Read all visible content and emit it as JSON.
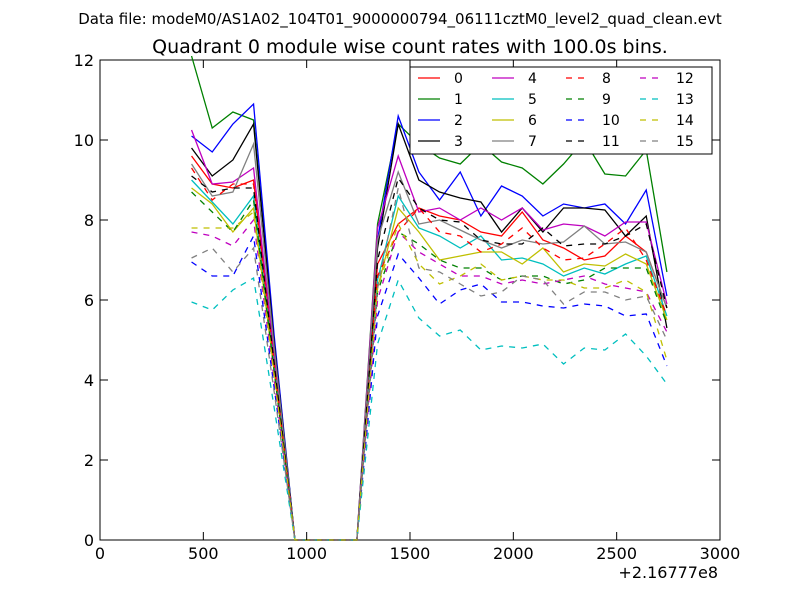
{
  "suptitle": "Data file: modeM0/AS1A02_104T01_9000000794_06111cztM0_level2_quad_clean.evt",
  "chart_data": {
    "type": "line",
    "title": "Quadrant 0 module wise count rates with 100.0s bins.",
    "xlabel": "",
    "ylabel": "",
    "x_offset_label": "+2.16777e8",
    "xlim": [
      0,
      3000
    ],
    "ylim": [
      0,
      12
    ],
    "xticks": [
      0,
      500,
      1000,
      1500,
      2000,
      2500,
      3000
    ],
    "xtick_labels": [
      "0",
      "500",
      "1000",
      "1500",
      "2000",
      "2500",
      "3000"
    ],
    "yticks": [
      0,
      2,
      4,
      6,
      8,
      10,
      12
    ],
    "ytick_labels": [
      "0",
      "2",
      "4",
      "6",
      "8",
      "10",
      "12"
    ],
    "grid": false,
    "legend_position": "top-right",
    "x": [
      443,
      543,
      643,
      743,
      843,
      943,
      1043,
      1143,
      1243,
      1343,
      1443,
      1543,
      1643,
      1743,
      1843,
      1943,
      2043,
      2143,
      2243,
      2343,
      2443,
      2543,
      2643,
      2743
    ],
    "series": [
      {
        "name": "0",
        "color": "#ff0000",
        "dash": false,
        "values": [
          9.6,
          8.9,
          8.8,
          9.0,
          4.5,
          0,
          0,
          0,
          0,
          6.9,
          7.9,
          8.3,
          8.1,
          8.0,
          7.7,
          7.6,
          8.2,
          7.5,
          7.3,
          7.0,
          7.1,
          7.6,
          7.2,
          5.8
        ]
      },
      {
        "name": "1",
        "color": "#008000",
        "dash": false,
        "values": [
          12.1,
          10.3,
          10.7,
          10.5,
          5.0,
          0,
          0,
          0,
          0,
          7.9,
          10.4,
          9.9,
          9.55,
          9.4,
          9.9,
          9.45,
          9.3,
          8.9,
          9.4,
          10.0,
          9.15,
          9.1,
          9.75,
          6.7
        ]
      },
      {
        "name": "2",
        "color": "#0000ff",
        "dash": false,
        "values": [
          10.1,
          9.7,
          10.4,
          10.9,
          5.1,
          0,
          0,
          0,
          0,
          7.5,
          10.6,
          9.2,
          8.5,
          9.2,
          8.1,
          8.85,
          8.6,
          8.1,
          8.4,
          8.3,
          8.4,
          7.9,
          8.75,
          6.1
        ]
      },
      {
        "name": "3",
        "color": "#000000",
        "dash": false,
        "values": [
          9.8,
          9.1,
          9.5,
          10.4,
          4.9,
          0,
          0,
          0,
          0,
          7.3,
          10.4,
          9.0,
          8.7,
          8.55,
          8.45,
          7.7,
          8.3,
          7.7,
          8.3,
          8.3,
          8.25,
          7.6,
          8.1,
          5.3
        ]
      },
      {
        "name": "4",
        "color": "#bf00bf",
        "dash": false,
        "values": [
          10.25,
          8.9,
          8.95,
          9.3,
          4.6,
          0,
          0,
          0,
          0,
          7.8,
          9.6,
          8.2,
          8.3,
          8.0,
          8.3,
          8.0,
          8.3,
          7.75,
          7.9,
          7.85,
          7.6,
          7.95,
          7.95,
          5.9
        ]
      },
      {
        "name": "5",
        "color": "#00bfbf",
        "dash": false,
        "values": [
          9.0,
          8.45,
          7.9,
          8.6,
          4.3,
          0,
          0,
          0,
          0,
          6.5,
          8.6,
          7.8,
          7.6,
          7.3,
          7.6,
          7.0,
          7.05,
          6.9,
          6.6,
          6.8,
          6.65,
          6.9,
          7.1,
          5.6
        ]
      },
      {
        "name": "6",
        "color": "#bfbf00",
        "dash": false,
        "values": [
          8.8,
          8.4,
          7.7,
          8.3,
          4.2,
          0,
          0,
          0,
          0,
          6.3,
          8.3,
          7.7,
          7.0,
          7.1,
          7.2,
          7.2,
          6.9,
          7.3,
          6.7,
          6.9,
          6.85,
          7.15,
          6.9,
          5.5
        ]
      },
      {
        "name": "7",
        "color": "#808080",
        "dash": false,
        "values": [
          9.4,
          8.6,
          8.7,
          9.9,
          4.8,
          0,
          0,
          0,
          0,
          7.5,
          9.2,
          7.9,
          8.0,
          7.75,
          7.5,
          7.3,
          7.5,
          7.4,
          7.45,
          7.85,
          7.4,
          7.45,
          7.2,
          5.8
        ]
      },
      {
        "name": "8",
        "color": "#ff0000",
        "dash": true,
        "values": [
          9.3,
          8.5,
          8.9,
          8.9,
          4.4,
          0,
          0,
          0,
          0,
          6.6,
          7.7,
          8.3,
          7.7,
          7.6,
          7.2,
          7.4,
          7.8,
          7.3,
          7.0,
          7.05,
          7.4,
          7.8,
          7.0,
          5.6
        ]
      },
      {
        "name": "9",
        "color": "#008000",
        "dash": true,
        "values": [
          8.7,
          8.2,
          7.7,
          8.5,
          4.2,
          0,
          0,
          0,
          0,
          6.2,
          7.7,
          7.4,
          7.0,
          6.8,
          6.8,
          6.5,
          6.6,
          6.6,
          6.4,
          6.5,
          6.8,
          6.8,
          6.8,
          5.4
        ]
      },
      {
        "name": "10",
        "color": "#0000ff",
        "dash": true,
        "values": [
          6.95,
          6.6,
          6.6,
          7.6,
          3.8,
          0,
          0,
          0,
          0,
          5.6,
          7.15,
          6.55,
          5.9,
          6.25,
          6.4,
          5.95,
          5.95,
          5.85,
          5.8,
          5.9,
          5.85,
          5.6,
          5.65,
          4.35
        ]
      },
      {
        "name": "11",
        "color": "#000000",
        "dash": true,
        "values": [
          9.1,
          8.7,
          8.8,
          8.8,
          4.4,
          0,
          0,
          0,
          0,
          7.0,
          9.05,
          8.3,
          8.0,
          7.95,
          7.5,
          7.4,
          7.4,
          7.8,
          7.35,
          7.4,
          7.4,
          7.6,
          7.9,
          5.8
        ]
      },
      {
        "name": "12",
        "color": "#bf00bf",
        "dash": true,
        "values": [
          7.7,
          7.6,
          7.35,
          8.0,
          4.0,
          0,
          0,
          0,
          0,
          6.0,
          7.7,
          7.2,
          6.9,
          6.6,
          6.6,
          6.4,
          6.5,
          6.4,
          6.5,
          6.6,
          6.4,
          6.3,
          6.2,
          5.2
        ]
      },
      {
        "name": "13",
        "color": "#00bfbf",
        "dash": true,
        "values": [
          5.95,
          5.75,
          6.25,
          6.55,
          3.3,
          0,
          0,
          0,
          0,
          4.9,
          6.5,
          5.55,
          5.1,
          5.25,
          4.75,
          4.85,
          4.8,
          4.9,
          4.4,
          4.8,
          4.75,
          5.15,
          4.6,
          3.9
        ]
      },
      {
        "name": "14",
        "color": "#bfbf00",
        "dash": true,
        "values": [
          7.8,
          7.8,
          7.8,
          8.2,
          4.1,
          0,
          0,
          0,
          0,
          6.3,
          7.9,
          6.9,
          6.4,
          6.6,
          6.9,
          6.5,
          6.6,
          6.5,
          6.5,
          6.3,
          6.3,
          6.5,
          6.2,
          4.5
        ]
      },
      {
        "name": "15",
        "color": "#808080",
        "dash": true,
        "values": [
          7.05,
          7.3,
          6.7,
          7.3,
          3.7,
          0,
          0,
          0,
          0,
          6.3,
          8.8,
          6.8,
          6.7,
          6.4,
          6.1,
          6.2,
          6.6,
          6.5,
          5.9,
          6.2,
          6.2,
          6.0,
          6.1,
          5.0
        ]
      }
    ]
  }
}
